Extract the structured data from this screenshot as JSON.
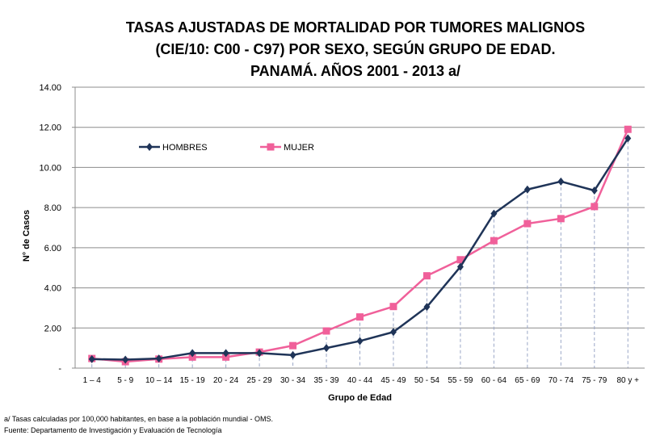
{
  "chart_data": {
    "type": "line",
    "title": [
      "TASAS AJUSTADAS DE MORTALIDAD POR TUMORES MALIGNOS",
      "(CIE/10: C00 - C97) POR SEXO, SEGÚN GRUPO DE EDAD.",
      "PANAMÁ. AÑOS 2001 - 2013 a/"
    ],
    "xlabel": "Grupo de Edad",
    "ylabel": "N° de Casos",
    "categories": [
      "1 – 4",
      "5 - 9",
      "10 – 14",
      "15 - 19",
      "20 - 24",
      "25 - 29",
      "30 - 34",
      "35 - 39",
      "40 - 44",
      "45 - 49",
      "50 - 54",
      "55 - 59",
      "60 - 64",
      "65 - 69",
      "70 - 74",
      "75 - 79",
      "80 y +"
    ],
    "ylim": [
      0,
      14
    ],
    "yticks": [
      "-",
      "2.00",
      "4.00",
      "6.00",
      "8.00",
      "10.00",
      "12.00",
      "14.00"
    ],
    "grid": true,
    "legend_position": "top-left",
    "series": [
      {
        "name": "HOMBRES",
        "color": "#1f3458",
        "marker": "diamond",
        "values": [
          0.45,
          0.42,
          0.48,
          0.75,
          0.75,
          0.75,
          0.65,
          1.0,
          1.35,
          1.8,
          3.05,
          5.05,
          7.7,
          8.9,
          9.3,
          8.85,
          11.45
        ]
      },
      {
        "name": "MUJER",
        "color": "#f0609a",
        "marker": "square",
        "values": [
          0.48,
          0.32,
          0.45,
          0.55,
          0.55,
          0.8,
          1.12,
          1.85,
          2.55,
          3.07,
          4.6,
          5.4,
          6.35,
          7.2,
          7.45,
          8.05,
          11.9
        ]
      }
    ]
  },
  "footnotes": {
    "note": "a/ Tasas calculadas por 100,000 habitantes, en base a la población mundial - OMS.",
    "source": "Fuente: Departamento de Investigación y Evaluación de Tecnología"
  }
}
